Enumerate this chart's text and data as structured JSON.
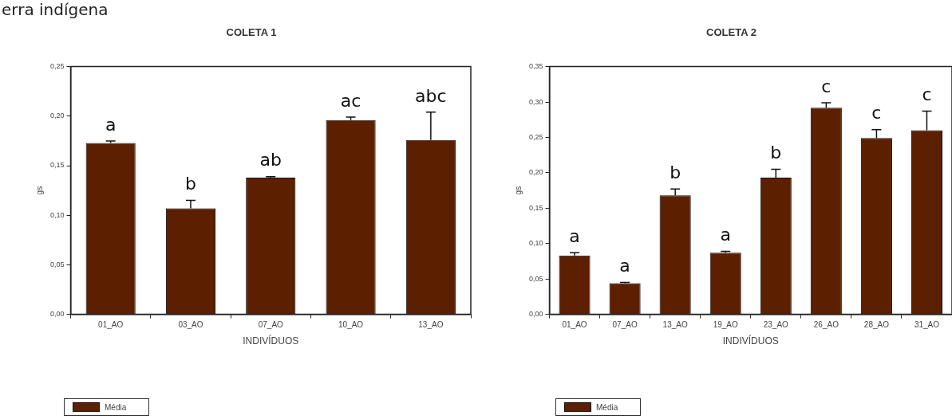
{
  "chart_data": [
    {
      "type": "bar",
      "title": "COLETA 1",
      "xlabel": "INDIVÍDUOS",
      "ylabel": "gs",
      "annotations": [
        "erra indígena"
      ],
      "categories": [
        "01_AO",
        "03_AO",
        "07_AO",
        "10_AO",
        "13_AO"
      ],
      "series": [
        {
          "name": "Média",
          "color": "#5c1f00",
          "values": [
            0.173,
            0.107,
            0.138,
            0.196,
            0.176
          ],
          "errors": [
            [
              0.173,
              0.175
            ],
            [
              0.107,
              0.115
            ],
            [
              0.138,
              0.139
            ],
            [
              0.196,
              0.199
            ],
            [
              0.176,
              0.204
            ]
          ],
          "value_labels": [
            "a",
            "b",
            "ab",
            "ac",
            "abc"
          ]
        }
      ],
      "ylim": [
        0,
        0.25
      ],
      "yticks": [
        {
          "value": 0,
          "label": "0,00"
        },
        {
          "value": 0.05,
          "label": "0,05"
        },
        {
          "value": 0.1,
          "label": "0,10"
        },
        {
          "value": 0.15,
          "label": "0,15"
        },
        {
          "value": 0.2,
          "label": "0,20"
        },
        {
          "value": 0.25,
          "label": "0,25"
        }
      ],
      "grid": false,
      "legend": "bottom left"
    },
    {
      "type": "bar",
      "title": "COLETA 2",
      "xlabel": "INDIVÍDUOS",
      "ylabel": "gs",
      "categories": [
        "01_AO",
        "07_AO",
        "13_AO",
        "19_AO",
        "23_AO",
        "26_AO",
        "28_AO",
        "31_AO"
      ],
      "series": [
        {
          "name": "Média",
          "color": "#5c1f00",
          "values": [
            0.083,
            0.044,
            0.168,
            0.087,
            0.193,
            0.292,
            0.249,
            0.26
          ],
          "errors": [
            [
              0.083,
              0.087
            ],
            [
              0.044,
              0.045
            ],
            [
              0.168,
              0.177
            ],
            [
              0.087,
              0.089
            ],
            [
              0.193,
              0.205
            ],
            [
              0.292,
              0.299
            ],
            [
              0.249,
              0.261
            ],
            [
              0.26,
              0.287
            ]
          ],
          "value_labels": [
            "a",
            "a",
            "b",
            "a",
            "b",
            "c",
            "c",
            "c"
          ]
        }
      ],
      "ylim": [
        0,
        0.35
      ],
      "yticks": [
        {
          "value": 0,
          "label": "0,00"
        },
        {
          "value": 0.05,
          "label": "0,05"
        },
        {
          "value": 0.1,
          "label": "0,10"
        },
        {
          "value": 0.15,
          "label": "0,15"
        },
        {
          "value": 0.2,
          "label": "0,20"
        },
        {
          "value": 0.25,
          "label": "0,25"
        },
        {
          "value": 0.3,
          "label": "0,30"
        },
        {
          "value": 0.35,
          "label": "0,35"
        }
      ],
      "grid": false,
      "legend": "bottom left"
    }
  ]
}
